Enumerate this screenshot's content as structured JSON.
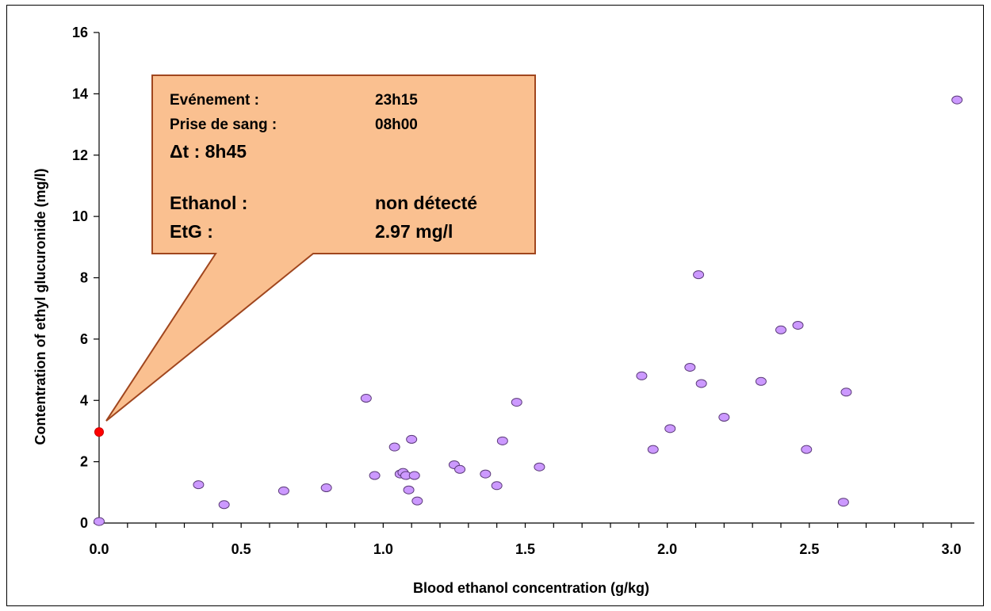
{
  "chart_data": {
    "type": "scatter",
    "title": "",
    "xlabel": "Blood ethanol concentration (g/kg)",
    "ylabel": "Contentration of ethyl glucuronide (mg/l)",
    "xlim": [
      0,
      3.2
    ],
    "ylim": [
      0,
      16
    ],
    "x_ticks": [
      "0.0",
      "0.5",
      "1.0",
      "1.5",
      "2.0",
      "2.5",
      "3.0"
    ],
    "y_ticks": [
      "0",
      "2",
      "4",
      "6",
      "8",
      "10",
      "12",
      "14",
      "16"
    ],
    "grid": false,
    "legend": "none",
    "series": [
      {
        "color": "#cc99ff",
        "points": [
          [
            0.0,
            0.05
          ],
          [
            0.35,
            1.25
          ],
          [
            0.44,
            0.6
          ],
          [
            0.65,
            1.05
          ],
          [
            0.8,
            1.15
          ],
          [
            0.94,
            4.07
          ],
          [
            0.97,
            1.55
          ],
          [
            1.04,
            2.48
          ],
          [
            1.06,
            1.6
          ],
          [
            1.07,
            1.65
          ],
          [
            1.08,
            1.55
          ],
          [
            1.09,
            1.08
          ],
          [
            1.1,
            2.73
          ],
          [
            1.11,
            1.55
          ],
          [
            1.12,
            0.72
          ],
          [
            1.25,
            1.9
          ],
          [
            1.27,
            1.75
          ],
          [
            1.36,
            1.6
          ],
          [
            1.4,
            1.22
          ],
          [
            1.42,
            2.68
          ],
          [
            1.47,
            3.94
          ],
          [
            1.55,
            1.83
          ],
          [
            1.91,
            4.8
          ],
          [
            1.95,
            2.4
          ],
          [
            2.01,
            3.08
          ],
          [
            2.08,
            5.08
          ],
          [
            2.11,
            8.1
          ],
          [
            2.12,
            4.55
          ],
          [
            2.2,
            3.45
          ],
          [
            2.33,
            4.62
          ],
          [
            2.4,
            6.3
          ],
          [
            2.46,
            6.45
          ],
          [
            2.49,
            2.4
          ],
          [
            2.62,
            0.68
          ],
          [
            2.63,
            4.27
          ],
          [
            3.02,
            13.8
          ]
        ]
      },
      {
        "color": "#ff0000",
        "points": [
          [
            0.0,
            2.97
          ]
        ]
      }
    ],
    "annotation": {
      "color": "#fac090",
      "target": [
        0.0,
        2.97
      ],
      "lines": [
        {
          "label": "Evénement :",
          "value": "23h15"
        },
        {
          "label": "Prise de sang :",
          "value": "08h00"
        },
        {
          "label": "Δt : 8h45",
          "value": ""
        },
        {
          "label": "Ethanol :",
          "value": "non détecté"
        },
        {
          "label": "EtG :",
          "value": "2.97 mg/l"
        }
      ]
    }
  }
}
